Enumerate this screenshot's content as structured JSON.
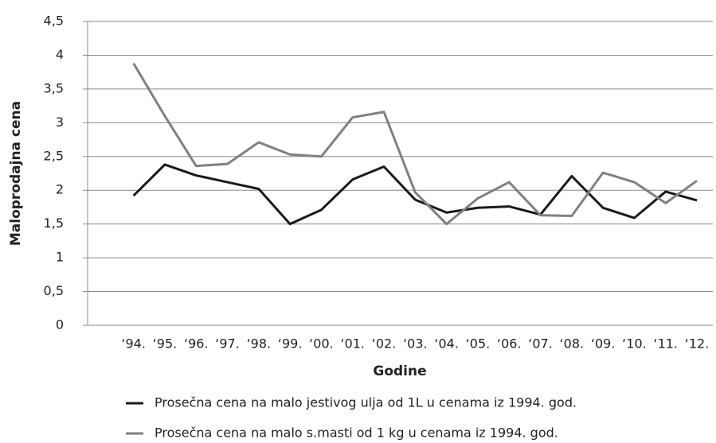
{
  "chart_data": {
    "type": "line",
    "y_label": "Maloprodajna cena",
    "x_label": "Godine",
    "categories": [
      "‘94.",
      "‘95.",
      "‘96.",
      "‘97.",
      "‘98.",
      "‘99.",
      "‘00.",
      "‘01.",
      "‘02.",
      "‘03.",
      "‘04.",
      "‘05.",
      "‘06.",
      "‘07.",
      "‘08.",
      "‘09.",
      "‘10.",
      "‘11.",
      "‘12."
    ],
    "series": [
      {
        "name": "Prosečna cena na malo jestivog ulja od 1L u cenama iz 1994. god.",
        "color": "#1a1a1a",
        "values": [
          1.92,
          2.38,
          2.22,
          2.12,
          2.02,
          1.5,
          1.71,
          2.16,
          2.35,
          1.86,
          1.67,
          1.74,
          1.76,
          1.64,
          2.21,
          1.74,
          1.59,
          1.98,
          1.85
        ]
      },
      {
        "name": "Prosečna cena na malo s.masti od 1 kg u cenama iz 1994. god.",
        "color": "#808080",
        "values": [
          3.88,
          3.1,
          2.36,
          2.39,
          2.71,
          2.53,
          2.5,
          3.08,
          3.16,
          1.97,
          1.5,
          1.88,
          2.12,
          1.63,
          1.62,
          2.26,
          2.12,
          1.81,
          2.14
        ]
      }
    ],
    "ylim": [
      0,
      4.5
    ],
    "yticks": [
      0,
      {
        "value": 0.5,
        "label": "0,5"
      },
      1,
      {
        "value": 1.5,
        "label": "1,5"
      },
      2,
      {
        "value": 2.5,
        "label": "2,5"
      },
      3,
      {
        "value": 3.5,
        "label": "3,5"
      },
      4,
      {
        "value": 4.5,
        "label": "4,5"
      }
    ],
    "grid": true,
    "legend": "bottom"
  }
}
